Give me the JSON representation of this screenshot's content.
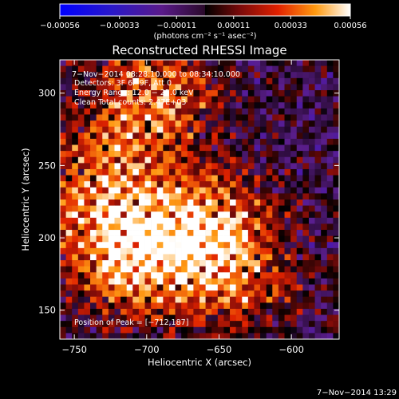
{
  "chart_data": {
    "type": "heatmap",
    "title": "Reconstructed RHESSI Image",
    "xlabel": "Heliocentric X (arcsec)",
    "ylabel": "Heliocentric Y (arcsec)",
    "xlim": [
      -760,
      -567
    ],
    "ylim": [
      130,
      323
    ],
    "xticks": [
      -750,
      -700,
      -650,
      -600
    ],
    "xtick_labels": [
      "−750",
      "−700",
      "−650",
      "−600"
    ],
    "yticks": [
      150,
      200,
      250,
      300
    ],
    "ytick_labels": [
      "150",
      "200",
      "250",
      "300"
    ],
    "colorbar": {
      "min": -0.00056,
      "max": 0.00056,
      "ticks": [
        -0.00056,
        -0.00033,
        -0.00011,
        0.00011,
        0.00033,
        0.00056
      ],
      "tick_labels": [
        "−0.00056",
        "−0.00033",
        "−0.00011",
        "0.00011",
        "0.00033",
        "0.00056"
      ],
      "unit": "(photons cm⁻² s⁻¹ asec⁻²)"
    },
    "annotations": {
      "time_range": "7−Nov−2014 08:28:10.000 to 08:34:10.000",
      "detectors": "Detectors: 3F 6F 9F, Att 0",
      "energy": "Energy Range: 12.0 − 25.0 keV",
      "method": "Clean     Total counts: 2.47E+03",
      "peak": "Position of Peak = [−712,187]"
    },
    "peak": [
      -712,
      187
    ],
    "sources": [
      {
        "x": -712,
        "y": 190,
        "intensity": 1.0
      },
      {
        "x": -660,
        "y": 205,
        "intensity": 0.85
      },
      {
        "x": -695,
        "y": 295,
        "intensity": 0.7
      },
      {
        "x": -735,
        "y": 240,
        "intensity": 0.55
      },
      {
        "x": -640,
        "y": 170,
        "intensity": 0.45
      }
    ]
  },
  "footer": {
    "date": "7−Nov−2014 13:29"
  }
}
